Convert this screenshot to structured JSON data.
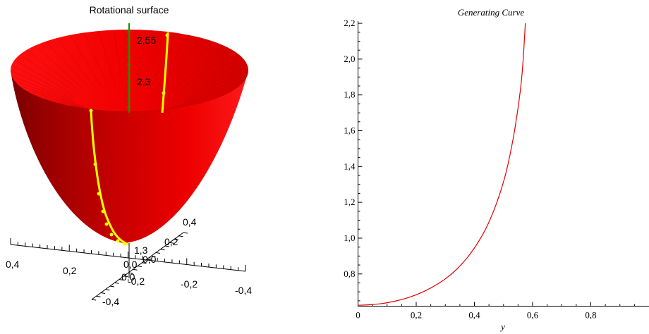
{
  "chart_data": [
    {
      "type": "surface3d",
      "title": "Rotational surface",
      "colors": {
        "surface": "#e00000",
        "curve": "#ffff00",
        "vertical_axis": "#00a000"
      },
      "z_ticks": [
        "2,55",
        "2,3"
      ],
      "extra_z_tick": "1,3",
      "y_ticks_right": [
        "0,4",
        "0,2",
        "0,0"
      ],
      "x_ticks_left": [
        "0,4",
        "0,2",
        "0,0",
        "-0,2",
        "-0,4"
      ],
      "depth_ticks": [
        "0,0",
        "-0,2",
        "-0,4"
      ]
    },
    {
      "type": "line",
      "title": "Generating Curve",
      "xlabel": "y",
      "ylabel": "",
      "xlim": [
        0,
        1.0
      ],
      "ylim": [
        0.62,
        2.22
      ],
      "x_ticks": [
        "0",
        "0,2",
        "0,4",
        "0,6",
        "0,8"
      ],
      "x_tick_values": [
        0,
        0.2,
        0.4,
        0.6,
        0.8
      ],
      "y_ticks": [
        "0,8",
        "1,0",
        "1,2",
        "1,4",
        "1,6",
        "1,8",
        "2,0",
        "2,2"
      ],
      "y_tick_values": [
        0.8,
        1.0,
        1.2,
        1.4,
        1.6,
        1.8,
        2.0,
        2.2
      ],
      "series": [
        {
          "color": "#e00000",
          "x": [
            0,
            0.05,
            0.1,
            0.15,
            0.2,
            0.25,
            0.3,
            0.35,
            0.4,
            0.45,
            0.5,
            0.53,
            0.55,
            0.565,
            0.575
          ],
          "y": [
            0.625,
            0.628,
            0.638,
            0.656,
            0.682,
            0.72,
            0.77,
            0.84,
            0.94,
            1.08,
            1.3,
            1.52,
            1.72,
            1.92,
            2.2
          ]
        }
      ]
    }
  ]
}
